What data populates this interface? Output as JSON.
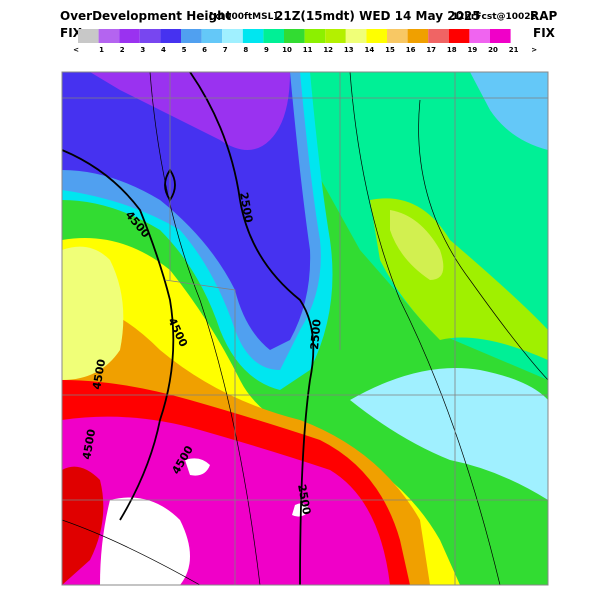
{
  "header": {
    "title": "OverDevelopment Height",
    "units": "[x1000ftMSL]",
    "valid_time": "21Z(15mdt) WED 14 May 2025",
    "forecast": "12hrFcst@1002z",
    "model": "RAP"
  },
  "colorbar": {
    "left_label": "FIX",
    "right_label": "FIX",
    "tick_labels": [
      "<",
      "1",
      "2",
      "3",
      "4",
      "5",
      "6",
      "7",
      "8",
      "9",
      "10",
      "11",
      "12",
      "13",
      "14",
      "15",
      "16",
      "17",
      "18",
      "19",
      "20",
      "21",
      ">"
    ]
  },
  "map": {
    "contour_labels": [
      "2500",
      "4500",
      "4500",
      "2500",
      "4500",
      "4500",
      "4500",
      "2500"
    ]
  }
}
